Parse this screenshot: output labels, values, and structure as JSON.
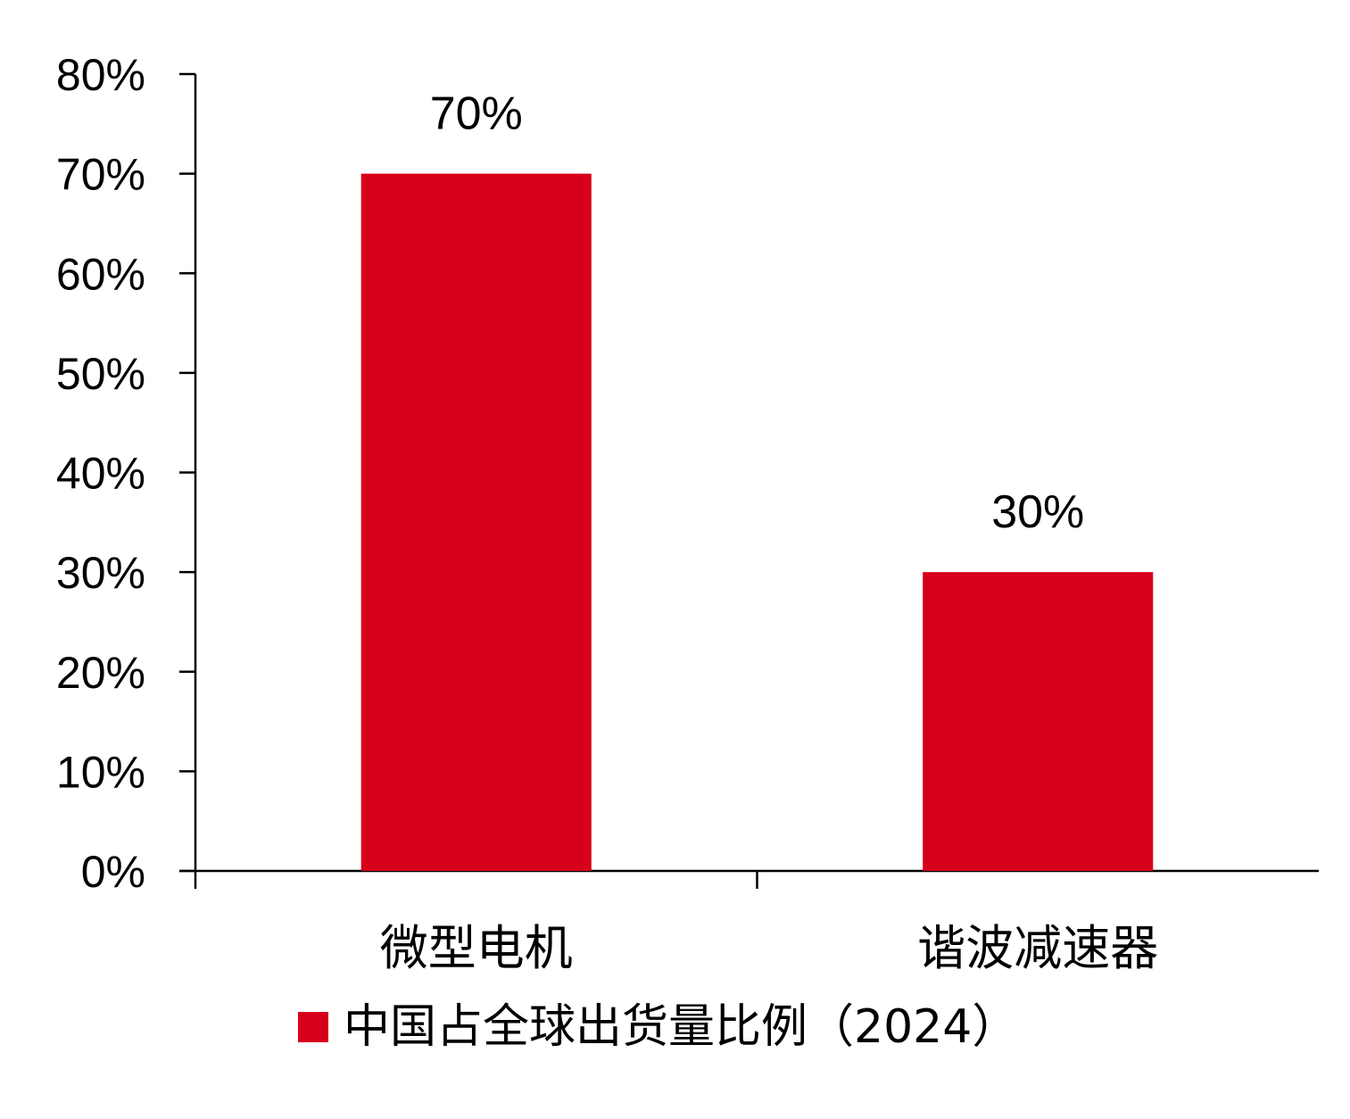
{
  "chart_data": {
    "type": "bar",
    "title": "",
    "xlabel": "",
    "ylabel": "",
    "categories": [
      "微型电机",
      "谐波减速器"
    ],
    "series": [
      {
        "name": "中国占全球出货量比例（2024）",
        "values": [
          70,
          30
        ],
        "color": "#d7001a"
      }
    ],
    "data_labels": [
      "70%",
      "30%"
    ],
    "ylim": [
      0,
      80
    ],
    "yticks": [
      0,
      10,
      20,
      30,
      40,
      50,
      60,
      70,
      80
    ],
    "ytick_labels": [
      "0%",
      "10%",
      "20%",
      "30%",
      "40%",
      "50%",
      "60%",
      "70%",
      "80%"
    ],
    "grid": false,
    "legend_position": "bottom-center"
  }
}
